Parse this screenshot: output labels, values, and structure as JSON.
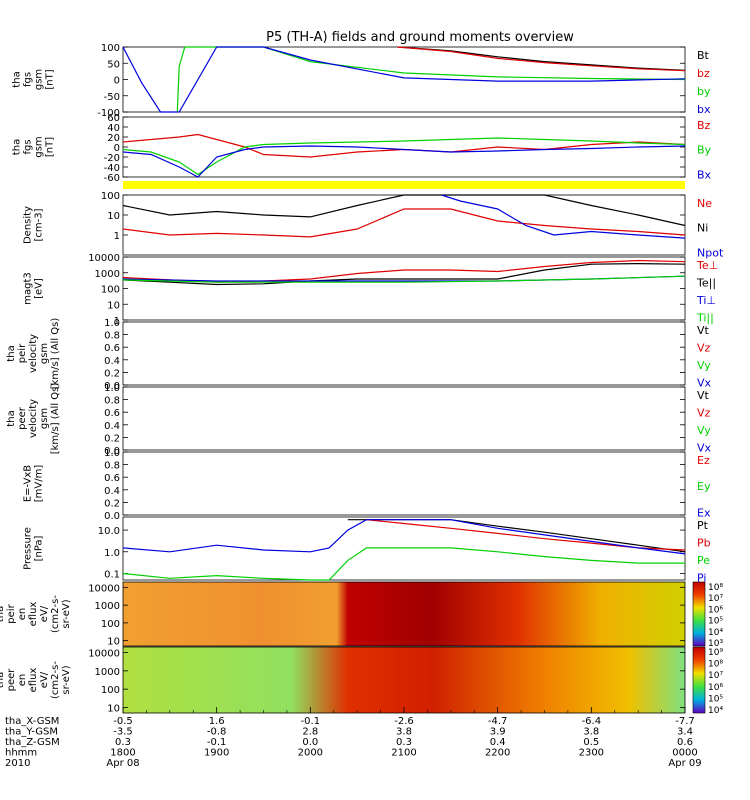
{
  "title": "P5 (TH-A) fields and ground moments overview",
  "colors": {
    "black": "#000000",
    "red": "#e00000",
    "green": "#00d000",
    "blue": "#0000e0",
    "yellow": "#ffff00"
  },
  "chart_data": [
    {
      "type": "line",
      "id": "fgs_gsm",
      "ylabel": [
        "tha",
        "fgs",
        "gsm",
        "[nT]"
      ],
      "ylim": [
        -100,
        100
      ],
      "yticks": [
        "100",
        "50",
        "0",
        "-50",
        "-100"
      ],
      "legend": [
        "Bt",
        "bz",
        "by",
        "bx"
      ],
      "series": [
        {
          "name": "Bt",
          "color": "black",
          "x": [
            2.93,
            3.5,
            4.0,
            4.5,
            5.0,
            5.5,
            6.0
          ],
          "values": [
            100,
            88,
            70,
            55,
            45,
            35,
            28
          ]
        },
        {
          "name": "bz",
          "color": "red",
          "x": [
            2.93,
            3.5,
            4.0,
            4.5,
            5.0,
            5.5,
            6.0
          ],
          "values": [
            100,
            86,
            65,
            52,
            42,
            33,
            27
          ]
        },
        {
          "name": "by",
          "color": "green",
          "x": [
            0.58,
            0.6,
            0.66,
            0.8,
            1.0,
            1.5,
            2.0,
            3.0,
            4.0,
            5.0,
            6.0
          ],
          "values": [
            -100,
            40,
            100,
            100,
            100,
            100,
            55,
            20,
            8,
            3,
            0
          ]
        },
        {
          "name": "bx",
          "color": "blue",
          "x": [
            0.0,
            0.2,
            0.4,
            0.6,
            1.0,
            1.5,
            2.0,
            3.0,
            4.0,
            5.0,
            6.0
          ],
          "values": [
            100,
            -10,
            -100,
            -100,
            100,
            100,
            60,
            5,
            -5,
            -5,
            2
          ]
        }
      ]
    },
    {
      "type": "line",
      "id": "fgs_gse",
      "ylabel": [
        "tha",
        "fgs",
        "gsm",
        "[nT]"
      ],
      "ylim": [
        -60,
        60
      ],
      "yticks": [
        "60",
        "40",
        "20",
        "0",
        "-20",
        "-40",
        "-60"
      ],
      "legend": [
        "Bz",
        "By",
        "Bx"
      ],
      "series": [
        {
          "name": "Bz",
          "color": "red",
          "x": [
            0.0,
            0.3,
            0.6,
            0.8,
            1.0,
            1.3,
            1.5,
            2.0,
            2.5,
            3.0,
            3.5,
            4.0,
            4.5,
            5.0,
            5.5,
            6.0
          ],
          "values": [
            10,
            15,
            20,
            25,
            15,
            0,
            -15,
            -20,
            -10,
            -5,
            -10,
            0,
            -5,
            5,
            10,
            5
          ]
        },
        {
          "name": "By",
          "color": "green",
          "x": [
            0.0,
            0.3,
            0.6,
            0.8,
            1.0,
            1.3,
            1.5,
            2.0,
            2.5,
            3.0,
            3.5,
            4.0,
            4.5,
            5.0,
            5.5,
            6.0
          ],
          "values": [
            -5,
            -10,
            -30,
            -55,
            -30,
            0,
            5,
            8,
            10,
            12,
            15,
            18,
            15,
            12,
            8,
            5
          ]
        },
        {
          "name": "Bx",
          "color": "blue",
          "x": [
            0.0,
            0.3,
            0.6,
            0.8,
            1.0,
            1.3,
            1.5,
            2.0,
            2.5,
            3.0,
            3.5,
            4.0,
            4.5,
            5.0,
            5.5,
            6.0
          ],
          "values": [
            -10,
            -15,
            -40,
            -60,
            -20,
            -5,
            0,
            2,
            0,
            -5,
            -10,
            -8,
            -5,
            -3,
            0,
            2
          ]
        }
      ]
    },
    {
      "type": "line",
      "id": "density",
      "scale": "log",
      "ylabel": [
        "Density",
        "[cm-3]"
      ],
      "ylim": [
        0.1,
        100
      ],
      "yticks": [
        "100",
        "10",
        "1"
      ],
      "legend": [
        "Ne",
        "Ni",
        "Npot"
      ],
      "series": [
        {
          "name": "Ne",
          "color": "red",
          "x": [
            0.0,
            0.5,
            1.0,
            1.5,
            2.0,
            2.5,
            3.0,
            3.5,
            4.0,
            4.5,
            5.0,
            5.5,
            6.0
          ],
          "values": [
            2,
            1,
            1.2,
            1,
            0.8,
            2,
            20,
            20,
            5,
            3,
            2,
            1.5,
            1
          ]
        },
        {
          "name": "Ni",
          "color": "black",
          "x": [
            0.0,
            0.5,
            1.0,
            1.5,
            2.0,
            2.5,
            3.0,
            3.5,
            4.0,
            4.5,
            5.0,
            5.5,
            6.0
          ],
          "values": [
            30,
            10,
            15,
            10,
            8,
            30,
            100,
            100,
            100,
            100,
            30,
            10,
            3
          ]
        },
        {
          "name": "Npot",
          "color": "blue",
          "x": [
            3.4,
            3.6,
            4.0,
            4.3,
            4.6,
            5.0,
            5.5,
            6.0
          ],
          "values": [
            100,
            50,
            20,
            3,
            1,
            1.5,
            1,
            0.7
          ]
        }
      ]
    },
    {
      "type": "line",
      "id": "magt3",
      "scale": "log",
      "ylabel": [
        "magt3",
        "[eV]"
      ],
      "ylim": [
        1,
        10000
      ],
      "yticks": [
        "10000",
        "1000",
        "100",
        "10",
        "1"
      ],
      "legend": [
        "Te⊥",
        "Te||",
        "Ti⊥",
        "Ti||"
      ],
      "series": [
        {
          "name": "Te⊥",
          "color": "red",
          "x": [
            0.0,
            0.5,
            1.0,
            1.5,
            2.0,
            2.5,
            3.0,
            3.5,
            4.0,
            4.5,
            5.0,
            5.5,
            6.0
          ],
          "values": [
            500,
            350,
            250,
            300,
            400,
            900,
            1500,
            1500,
            1200,
            2500,
            4500,
            6000,
            5000
          ]
        },
        {
          "name": "Te||",
          "color": "black",
          "x": [
            0.0,
            0.5,
            1.0,
            1.5,
            2.0,
            2.5,
            3.0,
            3.5,
            4.0,
            4.5,
            5.0,
            5.5,
            6.0
          ],
          "values": [
            350,
            250,
            180,
            200,
            300,
            400,
            400,
            400,
            400,
            1500,
            3500,
            3800,
            3500
          ]
        },
        {
          "name": "Ti⊥",
          "color": "blue",
          "x": [
            0.0,
            1.0,
            2.0,
            3.0,
            4.0,
            5.0,
            6.0
          ],
          "values": [
            400,
            300,
            300,
            300,
            300,
            400,
            600
          ]
        },
        {
          "name": "Ti||",
          "color": "green",
          "x": [
            0.0,
            1.0,
            2.0,
            3.0,
            4.0,
            5.0,
            6.0
          ],
          "values": [
            350,
            250,
            250,
            250,
            300,
            400,
            600
          ]
        }
      ]
    },
    {
      "type": "line",
      "id": "peir_velocity",
      "ylabel": [
        "tha",
        "peir",
        "velocity",
        "gsm",
        "[km/s] (All Qs)"
      ],
      "ylim": [
        0,
        1
      ],
      "yticks": [
        "1.0",
        "0.8",
        "0.6",
        "0.4",
        "0.2",
        "0.0"
      ],
      "legend": [
        "Vt",
        "Vz",
        "Vy",
        "Vx"
      ],
      "series": []
    },
    {
      "type": "line",
      "id": "peer_velocity",
      "ylabel": [
        "tha",
        "peer",
        "velocity",
        "gsm",
        "[km/s] (All Qs)"
      ],
      "ylim": [
        0,
        1
      ],
      "yticks": [
        "1.0",
        "0.8",
        "0.6",
        "0.4",
        "0.2",
        "0.0"
      ],
      "legend": [
        "Vt",
        "Vz",
        "Vy",
        "Vx"
      ],
      "series": []
    },
    {
      "type": "line",
      "id": "efield",
      "ylabel": [
        "E=-VxB",
        "[mV/m]"
      ],
      "ylim": [
        0,
        1
      ],
      "yticks": [
        "1.0",
        "0.8",
        "0.6",
        "0.4",
        "0.2",
        "0.0"
      ],
      "legend": [
        "Ez",
        "Ey",
        "Ex"
      ],
      "series": []
    },
    {
      "type": "line",
      "id": "pressure",
      "scale": "log",
      "ylabel": [
        "Pressure",
        "[nPa]"
      ],
      "ylim": [
        0.05,
        40
      ],
      "yticks": [
        "10.0",
        "1.0",
        "0.1"
      ],
      "legend": [
        "Pt",
        "Pb",
        "Pe",
        "Pi"
      ],
      "series": [
        {
          "name": "Pt",
          "color": "black",
          "x": [
            2.4,
            2.6,
            3.5,
            4.0,
            4.5,
            5.0,
            5.5,
            6.0
          ],
          "values": [
            30,
            30,
            30,
            15,
            8,
            4,
            2,
            1
          ]
        },
        {
          "name": "Pb",
          "color": "red",
          "x": [
            2.6,
            3.0,
            3.5,
            4.0,
            4.5,
            5.0,
            5.5,
            6.0
          ],
          "values": [
            30,
            20,
            12,
            7,
            4,
            2.5,
            1.5,
            1.2
          ]
        },
        {
          "name": "Pe",
          "color": "green",
          "x": [
            0.0,
            0.5,
            1.0,
            1.5,
            2.0,
            2.2,
            2.4,
            2.6,
            3.5,
            4.0,
            4.5,
            5.0,
            5.5,
            6.0
          ],
          "values": [
            0.1,
            0.06,
            0.08,
            0.06,
            0.05,
            0.05,
            0.4,
            1.5,
            1.5,
            1,
            0.6,
            0.4,
            0.3,
            0.3
          ]
        },
        {
          "name": "Pi",
          "color": "blue",
          "x": [
            0.0,
            0.5,
            1.0,
            1.5,
            2.0,
            2.2,
            2.4,
            2.6,
            3.5,
            4.0,
            4.5,
            5.0,
            5.5,
            6.0
          ],
          "values": [
            1.5,
            1,
            2,
            1.2,
            1,
            1.5,
            10,
            30,
            30,
            12,
            6,
            3,
            1.5,
            0.8
          ]
        }
      ]
    },
    {
      "type": "heatmap",
      "id": "peir_eflux",
      "scale": "log",
      "ylabel": [
        "tha",
        "peir",
        "en",
        "eflux",
        "eV/",
        "(cm2-s-",
        "sr-eV)"
      ],
      "ylim": [
        5,
        20000
      ],
      "yticks": [
        "10000",
        "1000",
        "100",
        "10"
      ],
      "colorbar": [
        "10⁸",
        "10⁷",
        "10⁶",
        "10⁵",
        "10⁴",
        "10³"
      ]
    },
    {
      "type": "heatmap",
      "id": "peer_eflux",
      "scale": "log",
      "ylabel": [
        "tha",
        "peer",
        "en",
        "eflux",
        "eV/",
        "(cm2-s-",
        "sr-eV)"
      ],
      "ylim": [
        5,
        20000
      ],
      "yticks": [
        "10000",
        "1000",
        "100",
        "10"
      ],
      "colorbar": [
        "10⁹",
        "10⁸",
        "10⁷",
        "10⁶",
        "10⁵",
        "10⁴"
      ]
    }
  ],
  "xaxis": {
    "rows": [
      {
        "label": "tha_X-GSM",
        "values": [
          "-0.5",
          "1.6",
          "-0.1",
          "-2.6",
          "-4.7",
          "-6.4",
          "-7.7"
        ]
      },
      {
        "label": "tha_Y-GSM",
        "values": [
          "-3.5",
          "-0.8",
          "2.8",
          "3.8",
          "3.9",
          "3.8",
          "3.4"
        ]
      },
      {
        "label": "tha_Z-GSM",
        "values": [
          "0.3",
          "-0.1",
          "0.0",
          "0.3",
          "0.4",
          "0.5",
          "0.6"
        ]
      },
      {
        "label": "hhmm",
        "values": [
          "1800",
          "1900",
          "2000",
          "2100",
          "2200",
          "2300",
          "0000"
        ]
      },
      {
        "label": "2010",
        "values": [
          "Apr 08",
          "",
          "",
          "",
          "",
          "",
          "Apr 09"
        ]
      }
    ]
  }
}
